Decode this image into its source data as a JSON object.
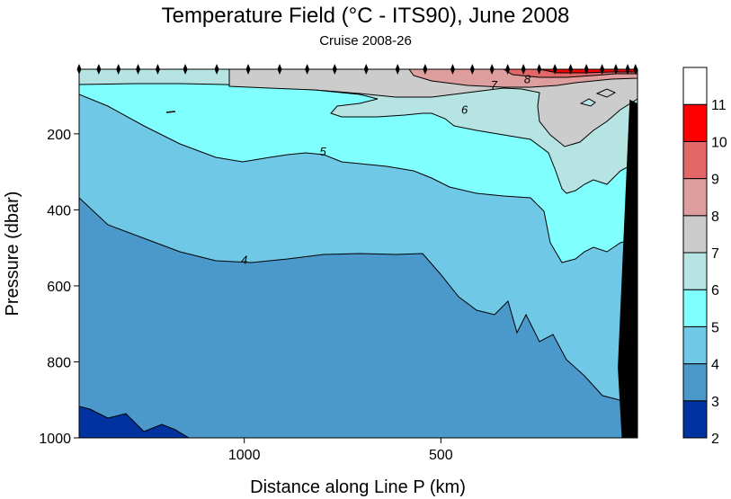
{
  "chart_data": {
    "type": "heatmap",
    "title": "Temperature Field (°C - ITS90),  June 2008",
    "subtitle": "Cruise 2008-26",
    "xlabel": "Distance along Line P  (km)",
    "ylabel": "Pressure  (dbar)",
    "xlim": [
      1420,
      0
    ],
    "ylim": [
      1000,
      30
    ],
    "x_ticks": [
      {
        "value": 1000,
        "label": "1000"
      },
      {
        "value": 500,
        "label": "500"
      }
    ],
    "y_ticks": [
      {
        "value": 200,
        "label": "200"
      },
      {
        "value": 400,
        "label": "400"
      },
      {
        "value": 600,
        "label": "600"
      },
      {
        "value": 800,
        "label": "800"
      },
      {
        "value": 1000,
        "label": "1000"
      }
    ],
    "colorbar": {
      "levels": [
        {
          "value": 2,
          "label": "2"
        },
        {
          "value": 3,
          "label": "3"
        },
        {
          "value": 4,
          "label": "4"
        },
        {
          "value": 5,
          "label": "5"
        },
        {
          "value": 6,
          "label": "6"
        },
        {
          "value": 7,
          "label": "7"
        },
        {
          "value": 8,
          "label": "8"
        },
        {
          "value": 9,
          "label": "9"
        },
        {
          "value": 10,
          "label": "10"
        },
        {
          "value": 11,
          "label": "11"
        }
      ],
      "colors": [
        "#0033a0",
        "#4b98cb",
        "#6fc8e5",
        "#80ffff",
        "#b5e4e2",
        "#cccccc",
        "#de9e9e",
        "#e26868",
        "#ff0000",
        "#ffffff"
      ]
    },
    "contour_labels": [
      {
        "text": "4",
        "x": 1000,
        "pressure": 530
      },
      {
        "text": "5",
        "x": 800,
        "pressure": 245
      },
      {
        "text": "6",
        "x": 440,
        "pressure": 135
      },
      {
        "text": "7",
        "x": 365,
        "pressure": 70
      },
      {
        "text": "8",
        "x": 280,
        "pressure": 55
      }
    ],
    "station_distances": [
      1420,
      1370,
      1320,
      1270,
      1220,
      1150,
      1070,
      990,
      910,
      840,
      770,
      690,
      610,
      540,
      470,
      420,
      370,
      330,
      290,
      250,
      210,
      170,
      130,
      90,
      55,
      25,
      5
    ],
    "bottom_topography": [
      {
        "x": 40,
        "pressure": 1000
      },
      {
        "x": 50,
        "pressure": 815
      },
      {
        "x": 20,
        "pressure": 110
      },
      {
        "x": 0,
        "pressure": 120
      },
      {
        "x": 0,
        "pressure": 1000
      }
    ]
  }
}
